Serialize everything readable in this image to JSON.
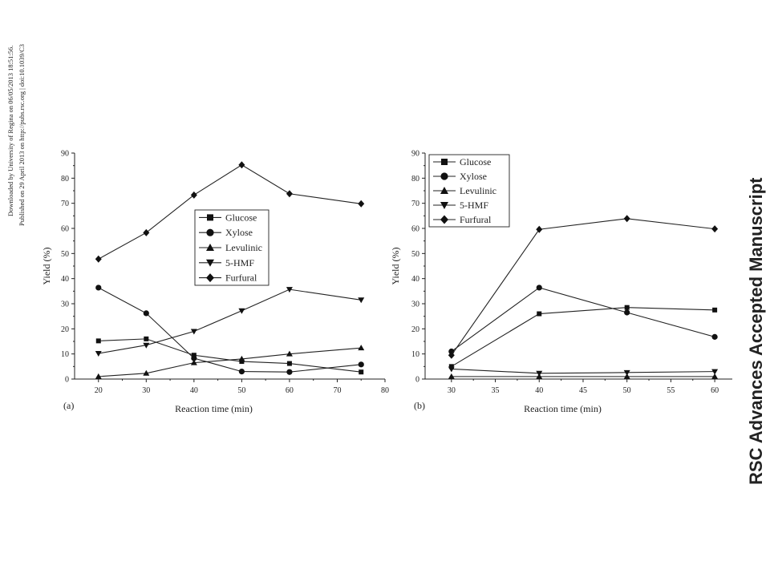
{
  "margin_note": {
    "line1": "Downloaded by University of Regina on 06/05/2013 18:51:56.",
    "line2": "Published on 29 April 2013 on http://pubs.rsc.org | doi:10.1039/C3"
  },
  "watermark": {
    "text": "RSC Advances Accepted Manuscript",
    "color": "#c9ccd6"
  },
  "chart_data": [
    {
      "type": "line",
      "panel_label": "(a)",
      "xlabel": "Reaction time (min)",
      "ylabel": "Yield (%)",
      "xlim": [
        15,
        80
      ],
      "ylim": [
        0,
        90
      ],
      "xticks": [
        20,
        30,
        40,
        50,
        60,
        70,
        80
      ],
      "yticks": [
        0,
        10,
        20,
        30,
        40,
        50,
        60,
        70,
        80,
        90
      ],
      "legend_position": "center-right",
      "x": [
        20,
        30,
        40,
        50,
        60,
        75
      ],
      "series": [
        {
          "name": "Glucose",
          "marker": "square",
          "values": [
            15.2,
            16.0,
            9.5,
            7.0,
            6.2,
            2.8
          ]
        },
        {
          "name": "Xylose",
          "marker": "circle",
          "values": [
            36.4,
            26.2,
            8.3,
            3.0,
            2.8,
            5.8
          ]
        },
        {
          "name": "Levulinic",
          "marker": "triangle-up",
          "values": [
            1.0,
            2.3,
            6.5,
            8.0,
            10.0,
            12.4
          ]
        },
        {
          "name": "5-HMF",
          "marker": "triangle-down",
          "values": [
            10.2,
            13.5,
            19.0,
            27.2,
            35.7,
            31.5
          ]
        },
        {
          "name": "Furfural",
          "marker": "diamond",
          "values": [
            47.8,
            58.3,
            73.3,
            85.3,
            73.8,
            69.8
          ]
        }
      ]
    },
    {
      "type": "line",
      "panel_label": "(b)",
      "xlabel": "Reaction time (min)",
      "ylabel": "Yield (%)",
      "xlim": [
        27,
        62
      ],
      "ylim": [
        0,
        90
      ],
      "xticks": [
        30,
        35,
        40,
        45,
        50,
        55,
        60
      ],
      "yticks": [
        0,
        10,
        20,
        30,
        40,
        50,
        60,
        70,
        80,
        90
      ],
      "legend_position": "top-left",
      "x": [
        30,
        40,
        50,
        60
      ],
      "series": [
        {
          "name": "Glucose",
          "marker": "square",
          "values": [
            5.0,
            26.0,
            28.5,
            27.5
          ]
        },
        {
          "name": "Xylose",
          "marker": "circle",
          "values": [
            11.0,
            36.4,
            26.5,
            16.8
          ]
        },
        {
          "name": "Levulinic",
          "marker": "triangle-up",
          "values": [
            1.0,
            1.0,
            1.0,
            1.0
          ]
        },
        {
          "name": "5-HMF",
          "marker": "triangle-down",
          "values": [
            4.0,
            2.3,
            2.6,
            3.0
          ]
        },
        {
          "name": "Furfural",
          "marker": "diamond",
          "values": [
            9.5,
            59.6,
            63.9,
            59.8
          ]
        }
      ]
    }
  ]
}
